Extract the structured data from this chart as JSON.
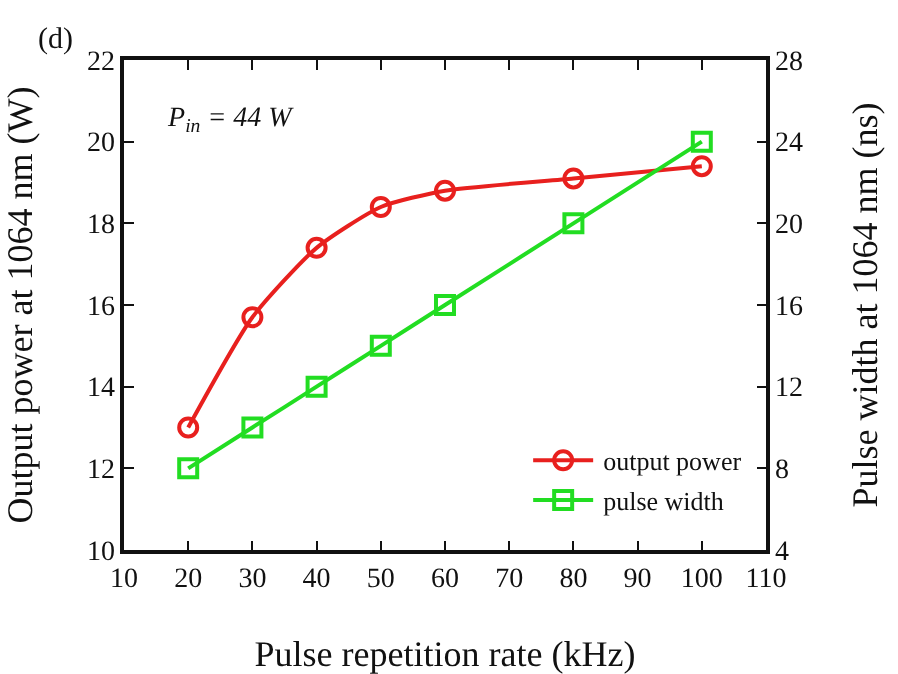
{
  "chart_data": {
    "type": "line",
    "xlabel": "Pulse repetition rate (kHz)",
    "ylabel": "Output power at 1064 nm (W)",
    "y2label": "Pulse width at 1064 nm (ns)",
    "annotations": [
      "(d)",
      "P$_{in}$ = 44 W"
    ],
    "x": [
      20,
      30,
      40,
      50,
      60,
      80,
      100
    ],
    "series": [
      {
        "name": "output power",
        "color": "#e8201e",
        "marker": "circle",
        "values": [
          13,
          15.7,
          17.4,
          18.4,
          18.8,
          19.1,
          19.4
        ]
      },
      {
        "name": "pulse width",
        "color": "#22dd22",
        "marker": "square",
        "axis": "y2",
        "values": [
          8,
          10,
          12,
          14,
          16,
          20,
          24
        ]
      }
    ],
    "xlim": [
      10,
      110
    ],
    "xticks": [
      10,
      20,
      30,
      40,
      50,
      60,
      70,
      80,
      90,
      100,
      110
    ],
    "ylim": [
      10,
      22
    ],
    "yticks": [
      10,
      12,
      14,
      16,
      18,
      20,
      22
    ],
    "y2lim": [
      4,
      28
    ],
    "y2ticks": [
      4,
      8,
      12,
      16,
      20,
      24,
      28
    ],
    "grid": false,
    "legend": "bottom right",
    "line_style": "solid"
  }
}
